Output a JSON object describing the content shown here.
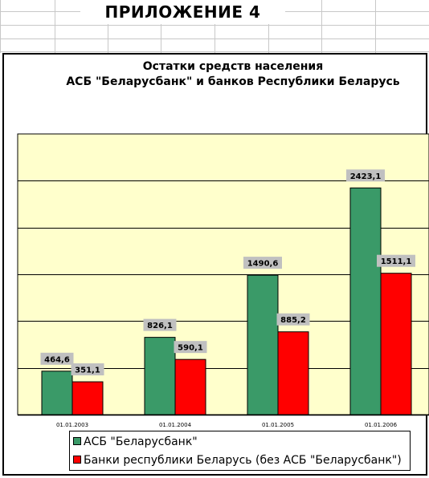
{
  "sheet": {
    "title": "ПРИЛОЖЕНИЕ 4"
  },
  "colors": {
    "series1": "#3a9a68",
    "series2": "#ff0000",
    "plot_background": "#ffffcc",
    "label_background": "#c0c0c0"
  },
  "chart_data": {
    "type": "bar",
    "title": "Остатки средств населения",
    "subtitle": "АСБ \"Беларусбанк\" и банков Республики Беларусь",
    "categories": [
      "01.01.2003",
      "01.01.2004",
      "01.01.2005",
      "01.01.2006"
    ],
    "series": [
      {
        "name": "АСБ \"Беларусбанк\"",
        "values": [
          464.6,
          826.1,
          1490.6,
          2423.1
        ],
        "labels": [
          "464,6",
          "826,1",
          "1490,6",
          "2423,1"
        ]
      },
      {
        "name": "Банки республики Беларусь (без АСБ \"Беларусбанк\")",
        "values": [
          351.1,
          590.1,
          885.2,
          1511.1
        ],
        "labels": [
          "351,1",
          "590,1",
          "885,2",
          "1511,1"
        ]
      }
    ],
    "ylim": [
      0,
      3000
    ],
    "grid": true,
    "legend_position": "bottom"
  }
}
